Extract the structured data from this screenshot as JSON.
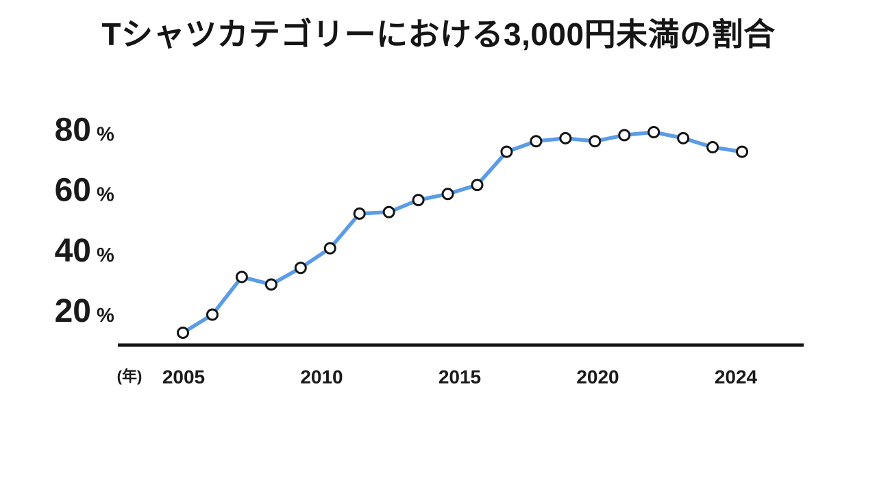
{
  "chart_data": {
    "type": "line",
    "title": "Tシャツカテゴリーにおける3,000円未満の割合",
    "x_axis_unit_label": "(年)",
    "x": [
      2005,
      2006,
      2007,
      2008,
      2009,
      2010,
      2011,
      2012,
      2013,
      2014,
      2015,
      2016,
      2017,
      2018,
      2019,
      2020,
      2021,
      2022,
      2023,
      2024
    ],
    "values": [
      12.5,
      18.5,
      31,
      28.5,
      34,
      40.5,
      52,
      52.5,
      56.5,
      58.5,
      61.5,
      72.5,
      76,
      77,
      76,
      78,
      79,
      77,
      74,
      72.5
    ],
    "x_tick_labels": [
      "2005",
      "2010",
      "2015",
      "2020",
      "2024"
    ],
    "y_tick_values": [
      20,
      40,
      60,
      80
    ],
    "y_tick_suffix": "%",
    "xlabel": "",
    "ylabel": "",
    "ylim": [
      8.4,
      88.7
    ],
    "grid": false,
    "legend": "none",
    "marker": "open-circle",
    "line_color": "#5b9ce6",
    "marker_fill": "#ffffff",
    "marker_stroke": "#141414",
    "axis_color": "#141414",
    "text_color": "#1a1a1a",
    "background": "#ffffff"
  }
}
